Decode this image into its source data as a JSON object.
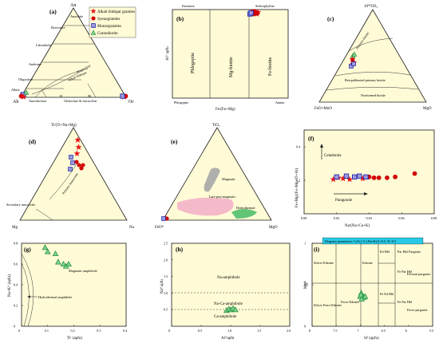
{
  "colors": {
    "panel_bg": "#fffbd6",
    "axis": "#1a1a1a",
    "alkali_feldspar_granites": "#e8141a",
    "syenogranites": "#d00000",
    "monzogranites_fill": "#9f9bd8",
    "monzogranites_edge": "#1f2ab5",
    "granodiorite_fill": "#7fd48f",
    "granodiorite_edge": "#1f8a3a",
    "param_box": "#27c9e6"
  },
  "legend": {
    "alkali": "Alkali feldspar granites",
    "syeno": "Syenogranites",
    "monzo": "Monzogranites",
    "grano": "Granodiorite"
  },
  "panel_a": {
    "letter": "(a)",
    "apex_top": "An",
    "apex_left": "Ab",
    "apex_right": "Or",
    "anorthite": "Anorthite",
    "bytownite": "Bytownite",
    "labradorite": "Labradorite",
    "andesine": "Andesine",
    "oligoclase": "Oligoclase",
    "albite": "Albite",
    "plagioclase": "Plagioclase",
    "alkali_feldspar": "Alkali feldspar",
    "anorthoclase": "Anorthoclase",
    "orthoclase": "Orthoclase & microcline",
    "tick10": "10",
    "tick90": "90"
  },
  "panel_b": {
    "letter": "(b)",
    "eastonite": "Eastonite",
    "siderophyllite": "Siderophyllite",
    "phlogopite_field": "Phlogopite",
    "mg_biotite": "Mg-biotite",
    "fe_biotite": "Fe-biotite",
    "phlogopite": "Phlogopite",
    "annite": "Annite",
    "xlabel": "Fe/(Fe+Mg)",
    "ylabel": "Alᵛᴵ apfu"
  },
  "panel_c": {
    "letter": "(c)",
    "apex_top": "10*TiO₂",
    "apex_left": "FeO+MnO",
    "apex_right": "MgO",
    "primary": "Primary biotite",
    "reequilibrated": "Reequilibrated primary biotite",
    "neoformed": "Neoformed biotite"
  },
  "panel_d": {
    "letter": "(d)",
    "apex_top": "Ti/(Ti+Na+Mg)",
    "apex_left": "Mg",
    "apex_right": "Na",
    "primary": "Primary muscovite",
    "secondary": "Secondary muscovite"
  },
  "panel_e": {
    "letter": "(e)",
    "apex_top": "TiO₂",
    "apex_left": "FeO*",
    "apex_right": "MgO",
    "magmatic": "Magmatic",
    "late_post": "Late-post magmatic",
    "hydrothermal": "Hydrothermal"
  },
  "panel_f": {
    "letter": "(f)",
    "ylabel": "Fe+Mg/(Fe+Mg+Ti+Al)",
    "xlabel": "Na/(Na+Ca+K)",
    "celadonite": "Celadonite",
    "paragonite": "Paragonite",
    "xticks": [
      "0.00",
      "0.02",
      "0.04",
      "0.06",
      "0.08"
    ],
    "yticks": [
      "0.2",
      "0.4"
    ]
  },
  "panel_g": {
    "letter": "(g)",
    "ylabel": "Na+Kᴬ (apfu)",
    "xlabel": "Tiᶜ (apfu)",
    "magmatic": "Magmatic amphibole",
    "hydrothermal": "Hydrothermal amphibole",
    "xticks": [
      "0",
      "0.1",
      "0.2",
      "0.3",
      "0.4"
    ],
    "yticks": [
      "0",
      "0.2",
      "0.4",
      "0.6",
      "0.8"
    ]
  },
  "panel_h": {
    "letter": "(h)",
    "ylabel": "Naᴮ apfu",
    "xlabel": "Alᵛᴵapfu",
    "na": "Na-amphibole",
    "naca": "Na-Ca-amphibole",
    "ca": "Ca-amphibole",
    "xticks": [
      "0",
      "0.5",
      "1.0",
      "1.5",
      "2.0"
    ],
    "yticks": [
      "0.5",
      "1.0",
      "1.5",
      "2.0",
      "2.5"
    ]
  },
  "panel_i": {
    "letter": "(i)",
    "params": "Diagram parameters: Caᴮ≥1.5, (Na+K)A<0.5, Ti<0.5",
    "ylabel": "Mg#",
    "xlabel": "Siᴵ (apfu)",
    "silicic_edenite": "Silicic-Edenite",
    "edenite": "Edenite",
    "ed_hbl": "Ed Hbl",
    "par_hbl": "Par Hbl",
    "pargasite": "Pargasite",
    "fe_par_hbl": "Fe Par Hbl",
    "ferroan_pargasite": "Ferroan-pargasite",
    "silicic_ferro": "Silicic Ferro-Edenite",
    "ferro_edenite": "Ferro-Edenite",
    "fe_ed_hbl": "Fe Ed Hbl",
    "fe_par_hbl2": "Fe Par Hbl",
    "ferro_pargasite": "Ferro-pargasite",
    "xticks": [
      "8",
      "7.5",
      "7",
      "6.5",
      "6",
      "5.5"
    ],
    "yticks": [
      "0",
      "0.5",
      "1"
    ]
  },
  "chart_data": [
    {
      "type": "scatter",
      "panel": "f",
      "xlabel": "Na/(Na+Ca+K)",
      "ylabel": "Fe+Mg/(Fe+Mg+Ti+Al)",
      "xlim": [
        0.0,
        0.08
      ],
      "ylim": [
        0.0,
        0.5
      ],
      "series": [
        {
          "name": "Alkali feldspar granites",
          "x": [
            0.018,
            0.021,
            0.024,
            0.028,
            0.036
          ],
          "y": [
            0.205,
            0.215,
            0.21,
            0.205,
            0.21
          ]
        },
        {
          "name": "Syenogranites",
          "x": [
            0.04,
            0.043,
            0.046,
            0.051,
            0.056,
            0.068
          ],
          "y": [
            0.22,
            0.215,
            0.215,
            0.215,
            0.22,
            0.24
          ]
        },
        {
          "name": "Monzogranites",
          "x": [
            0.02,
            0.026,
            0.031,
            0.034,
            0.038
          ],
          "y": [
            0.22,
            0.225,
            0.22,
            0.225,
            0.22
          ]
        }
      ]
    },
    {
      "type": "scatter",
      "panel": "g",
      "xlabel": "Tiᶜ (apfu)",
      "ylabel": "Na+Kᴬ (apfu)",
      "xlim": [
        0.0,
        0.4
      ],
      "ylim": [
        0.0,
        0.8
      ],
      "series": [
        {
          "name": "Granodiorite",
          "x": [
            0.09,
            0.1,
            0.13,
            0.14,
            0.16,
            0.17,
            0.18
          ],
          "y": [
            0.76,
            0.72,
            0.7,
            0.62,
            0.6,
            0.58,
            0.6
          ]
        }
      ]
    },
    {
      "type": "scatter",
      "panel": "h",
      "xlabel": "Alᵛᴵapfu",
      "ylabel": "Naᴮ apfu",
      "xlim": [
        0.0,
        2.0
      ],
      "ylim": [
        0.0,
        2.5
      ],
      "series": [
        {
          "name": "Granodiorite",
          "x": [
            0.93,
            0.97,
            1.0,
            1.04,
            1.08
          ],
          "y": [
            0.48,
            0.52,
            0.5,
            0.54,
            0.5
          ]
        }
      ]
    },
    {
      "type": "scatter",
      "panel": "i",
      "xlabel": "Siᴵ (apfu)",
      "ylabel": "Mg#",
      "xlim": [
        8.0,
        5.5
      ],
      "ylim": [
        0.0,
        1.0
      ],
      "series": [
        {
          "name": "Granodiorite",
          "x": [
            6.95,
            6.98,
            7.0,
            6.93,
            6.97,
            6.99,
            6.9
          ],
          "y": [
            0.37,
            0.4,
            0.36,
            0.35,
            0.33,
            0.38,
            0.36
          ]
        }
      ]
    },
    {
      "type": "scatter",
      "panel": "b",
      "xlabel": "Fe/(Fe+Mg)",
      "ylabel": "Alᵛᴵ apfu",
      "xlim": [
        0.0,
        1.0
      ],
      "ylim": [
        0.0,
        4.0
      ],
      "series": [
        {
          "name": "Alkali feldspar granites",
          "x": [
            0.72,
            0.73,
            0.74
          ],
          "y": [
            3.85,
            3.8,
            3.88
          ]
        },
        {
          "name": "Syenogranites",
          "x": [
            0.69,
            0.7,
            0.71,
            0.7,
            0.72,
            0.73
          ],
          "y": [
            3.9,
            3.85,
            3.92,
            3.8,
            3.87,
            3.83
          ]
        },
        {
          "name": "Monzogranites",
          "x": [
            0.67,
            0.68
          ],
          "y": [
            3.8,
            3.85
          ]
        }
      ]
    }
  ]
}
